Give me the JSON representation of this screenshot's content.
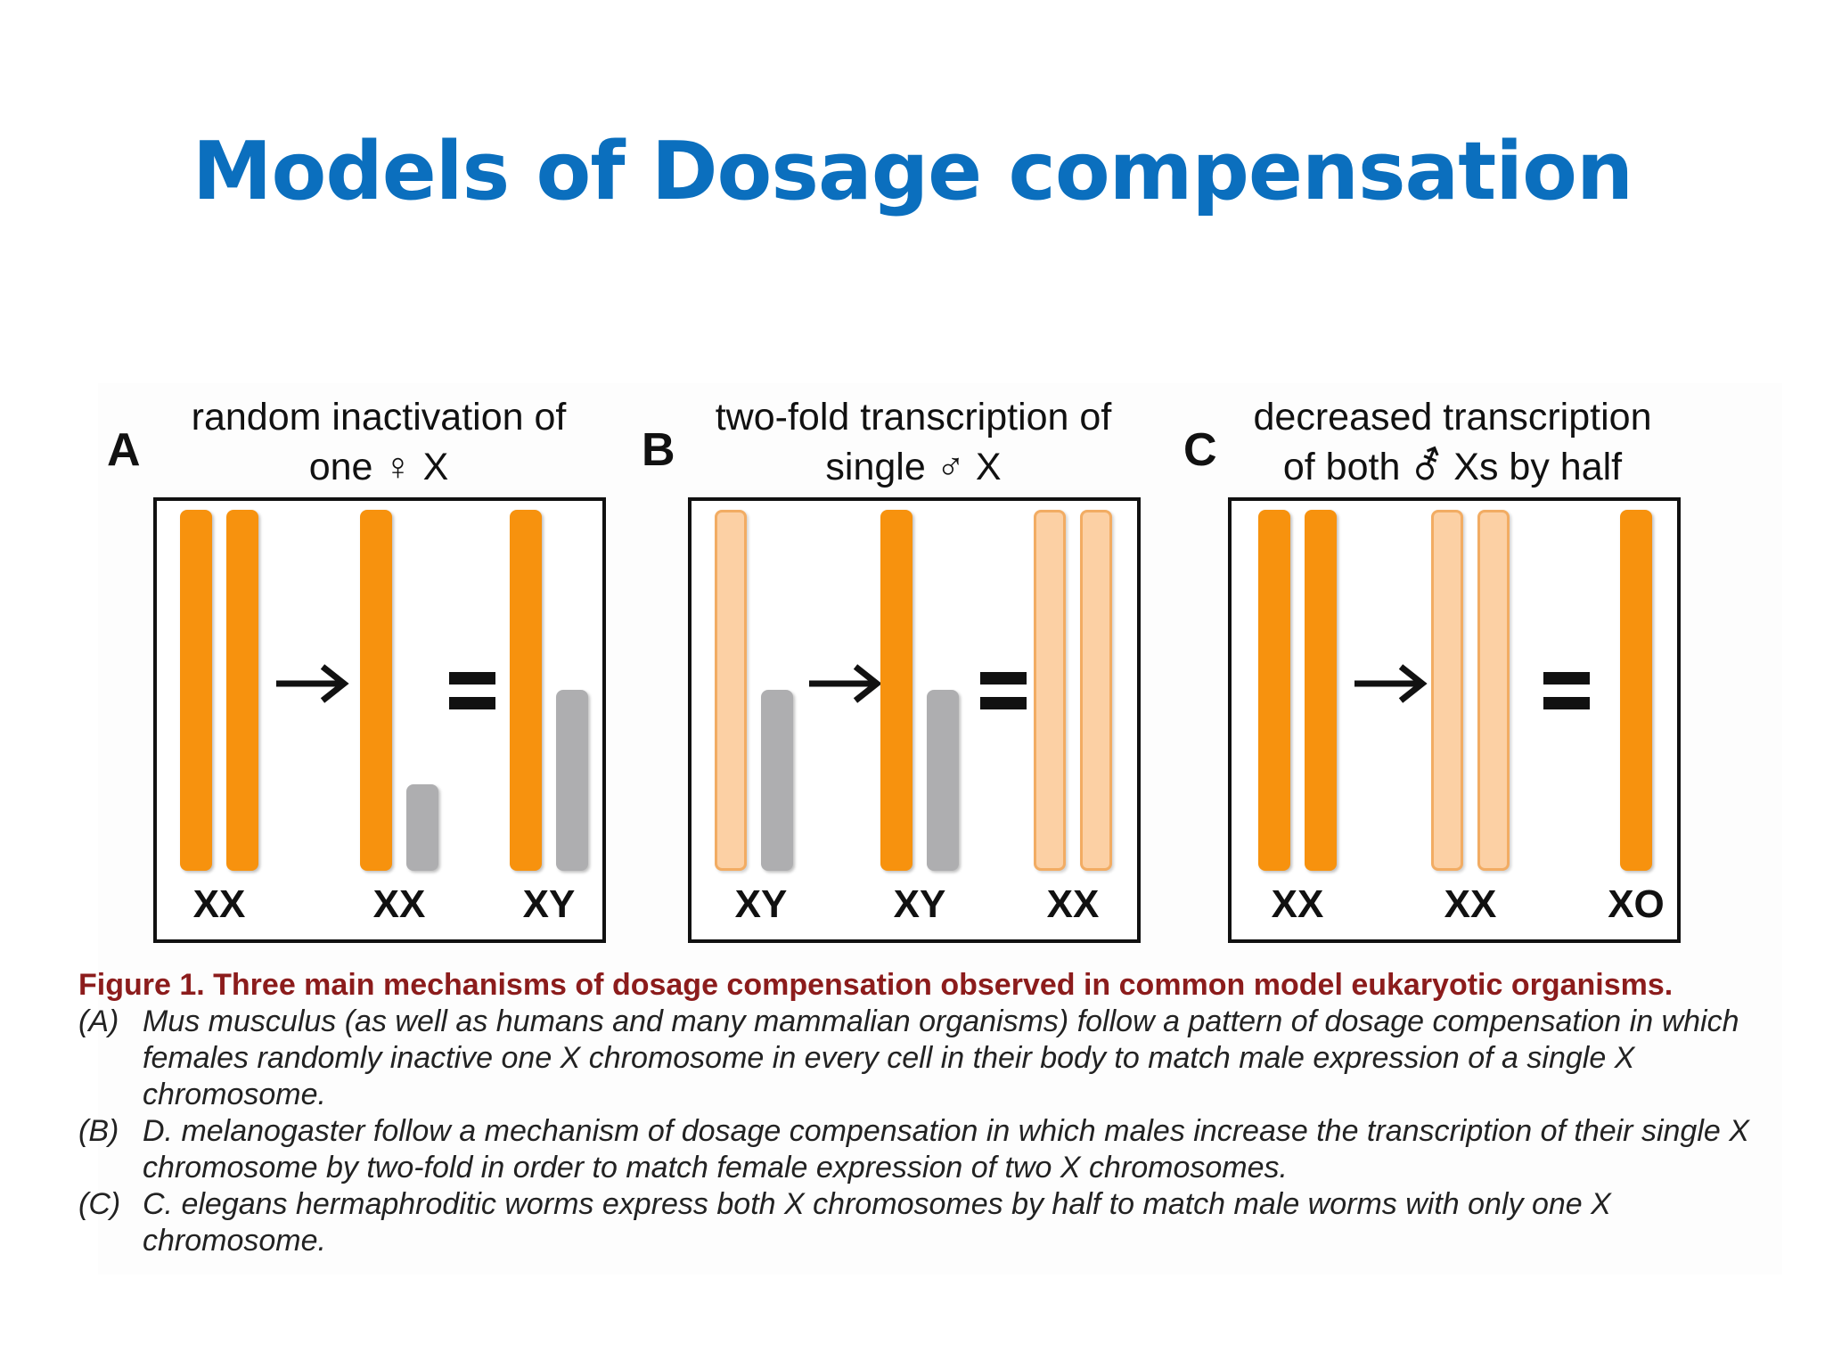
{
  "slide": {
    "title": "Models of Dosage compensation"
  },
  "panels": [
    {
      "letter": "A",
      "title_line1": "random inactivation of",
      "title_line2": "one ♀ X",
      "genotypes": [
        "XX",
        "XX",
        "XY"
      ]
    },
    {
      "letter": "B",
      "title_line1": "two-fold transcription of",
      "title_line2": "single ♂ X",
      "genotypes": [
        "XY",
        "XY",
        "XX"
      ]
    },
    {
      "letter": "C",
      "title_line1": "decreased transcription",
      "title_line2": "of both ⚦ Xs by half",
      "genotypes": [
        "XX",
        "XX",
        "XO"
      ]
    }
  ],
  "colors": {
    "active_x": "#f7920e",
    "inactive_x": "#fcd0a4",
    "y_chromosome": "#aeaeb0",
    "title_blue": "#0b6fbe",
    "caption_red": "#8c1c1c"
  },
  "caption": {
    "heading": "Figure 1. Three main mechanisms of dosage compensation observed in common model eukaryotic organisms.",
    "items": [
      {
        "label": "(A)",
        "text": "Mus musculus (as well as humans and many mammalian organisms) follow a pattern of dosage compensation in which females randomly inactive one X chromosome in every cell in their body to match male expression of a single X chromosome."
      },
      {
        "label": "(B)",
        "text": "D. melanogaster follow a mechanism of dosage compensation in which males increase the transcription of their single X chromosome by two-fold in order to match female expression of two X chromosomes."
      },
      {
        "label": "(C)",
        "text": "C. elegans hermaphroditic worms express both X chromosomes by half to match male worms with only one X chromosome."
      }
    ]
  }
}
